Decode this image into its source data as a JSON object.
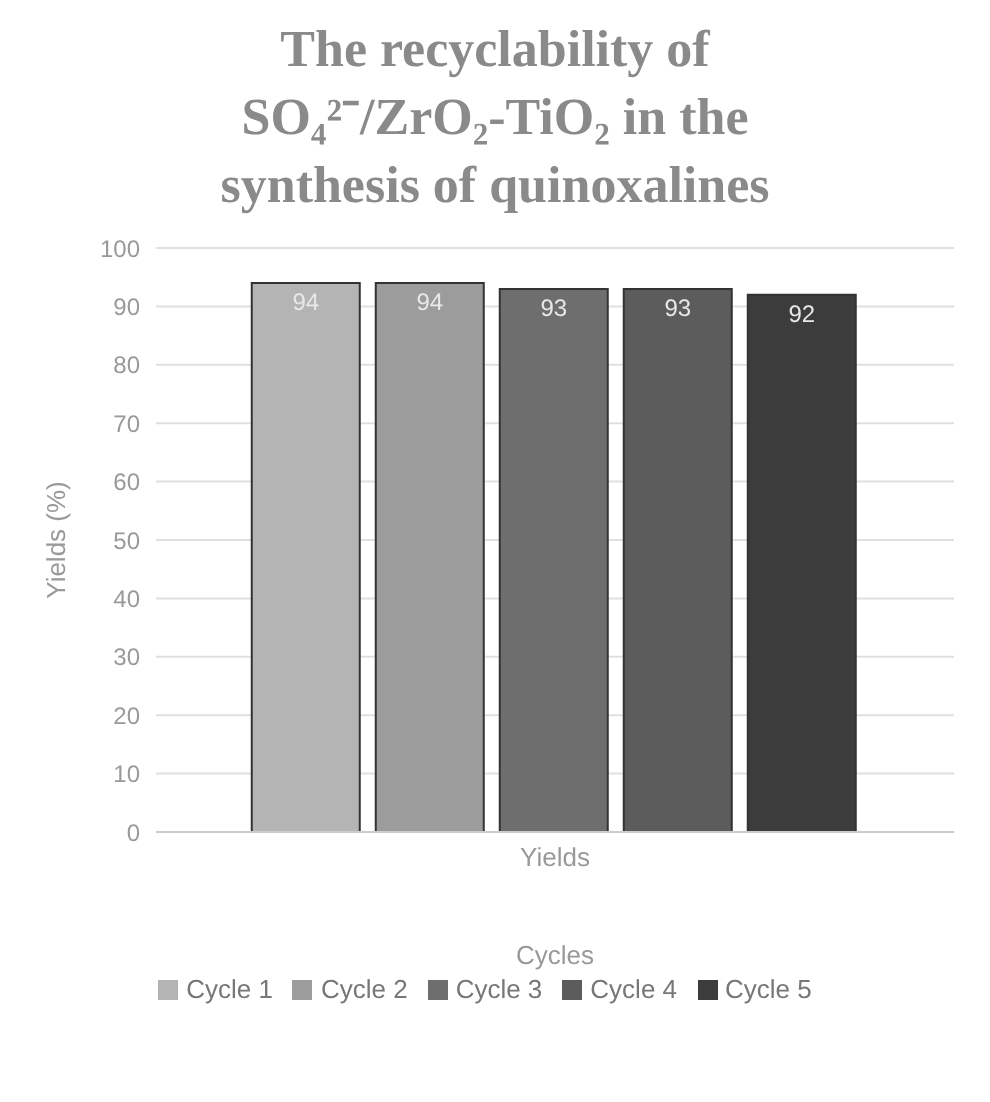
{
  "chart_data": {
    "type": "bar",
    "title": "The recyclability of SO₄²⁻/ZrO₂-TiO₂  in the synthesis of quinoxalines",
    "categories": [
      "Yields"
    ],
    "xlabel": "Cycles",
    "ylabel": "Yields (%)",
    "series": [
      {
        "name": "Cycle 1",
        "color": "#b4b4b4",
        "values": [
          94
        ]
      },
      {
        "name": "Cycle 2",
        "color": "#9c9c9c",
        "values": [
          94
        ]
      },
      {
        "name": "Cycle 3",
        "color": "#6e6e6e",
        "values": [
          93
        ]
      },
      {
        "name": "Cycle 4",
        "color": "#5c5c5c",
        "values": [
          93
        ]
      },
      {
        "name": "Cycle 5",
        "color": "#3c3c3c",
        "values": [
          92
        ]
      }
    ],
    "ylim": [
      0,
      100
    ],
    "yticks": [
      0,
      10,
      20,
      30,
      40,
      50,
      60,
      70,
      80,
      90,
      100
    ],
    "grid": "y",
    "legend": "bottom",
    "data_labels": true
  }
}
